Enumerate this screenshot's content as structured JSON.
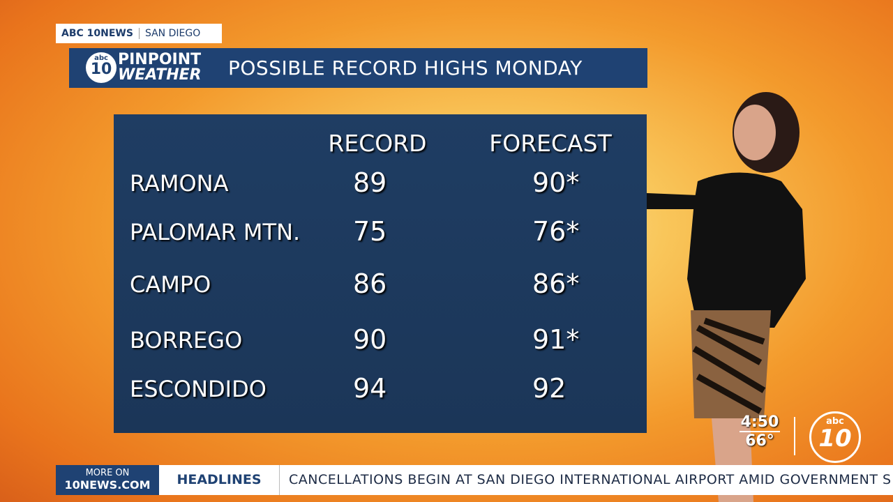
{
  "header": {
    "network": "ABC 10NEWS",
    "city": "SAN DIEGO",
    "logo_abc": "abc",
    "logo_number": "10",
    "logo_line1": "PINPOINT",
    "logo_line2": "WEATHER",
    "title": "POSSIBLE RECORD HIGHS MONDAY"
  },
  "table": {
    "columns": [
      "RECORD",
      "FORECAST"
    ],
    "rows": [
      [
        "RAMONA",
        89,
        "90*"
      ],
      [
        "PALOMAR MTN.",
        75,
        "76*"
      ],
      [
        "CAMPO",
        86,
        "86*"
      ],
      [
        "BORREGO",
        90,
        "91*"
      ],
      [
        "ESCONDIDO",
        94,
        92
      ]
    ]
  },
  "clock": {
    "time": "4:50",
    "temperature": "66°"
  },
  "corner_logo": {
    "abc": "abc",
    "number": "10"
  },
  "ticker": {
    "more_on": "MORE ON",
    "site": "10NEWS.COM",
    "section": "HEADLINES",
    "headline": "CANCELLATIONS BEGIN AT SAN DIEGO INTERNATIONAL AIRPORT AMID GOVERNMENT S"
  }
}
